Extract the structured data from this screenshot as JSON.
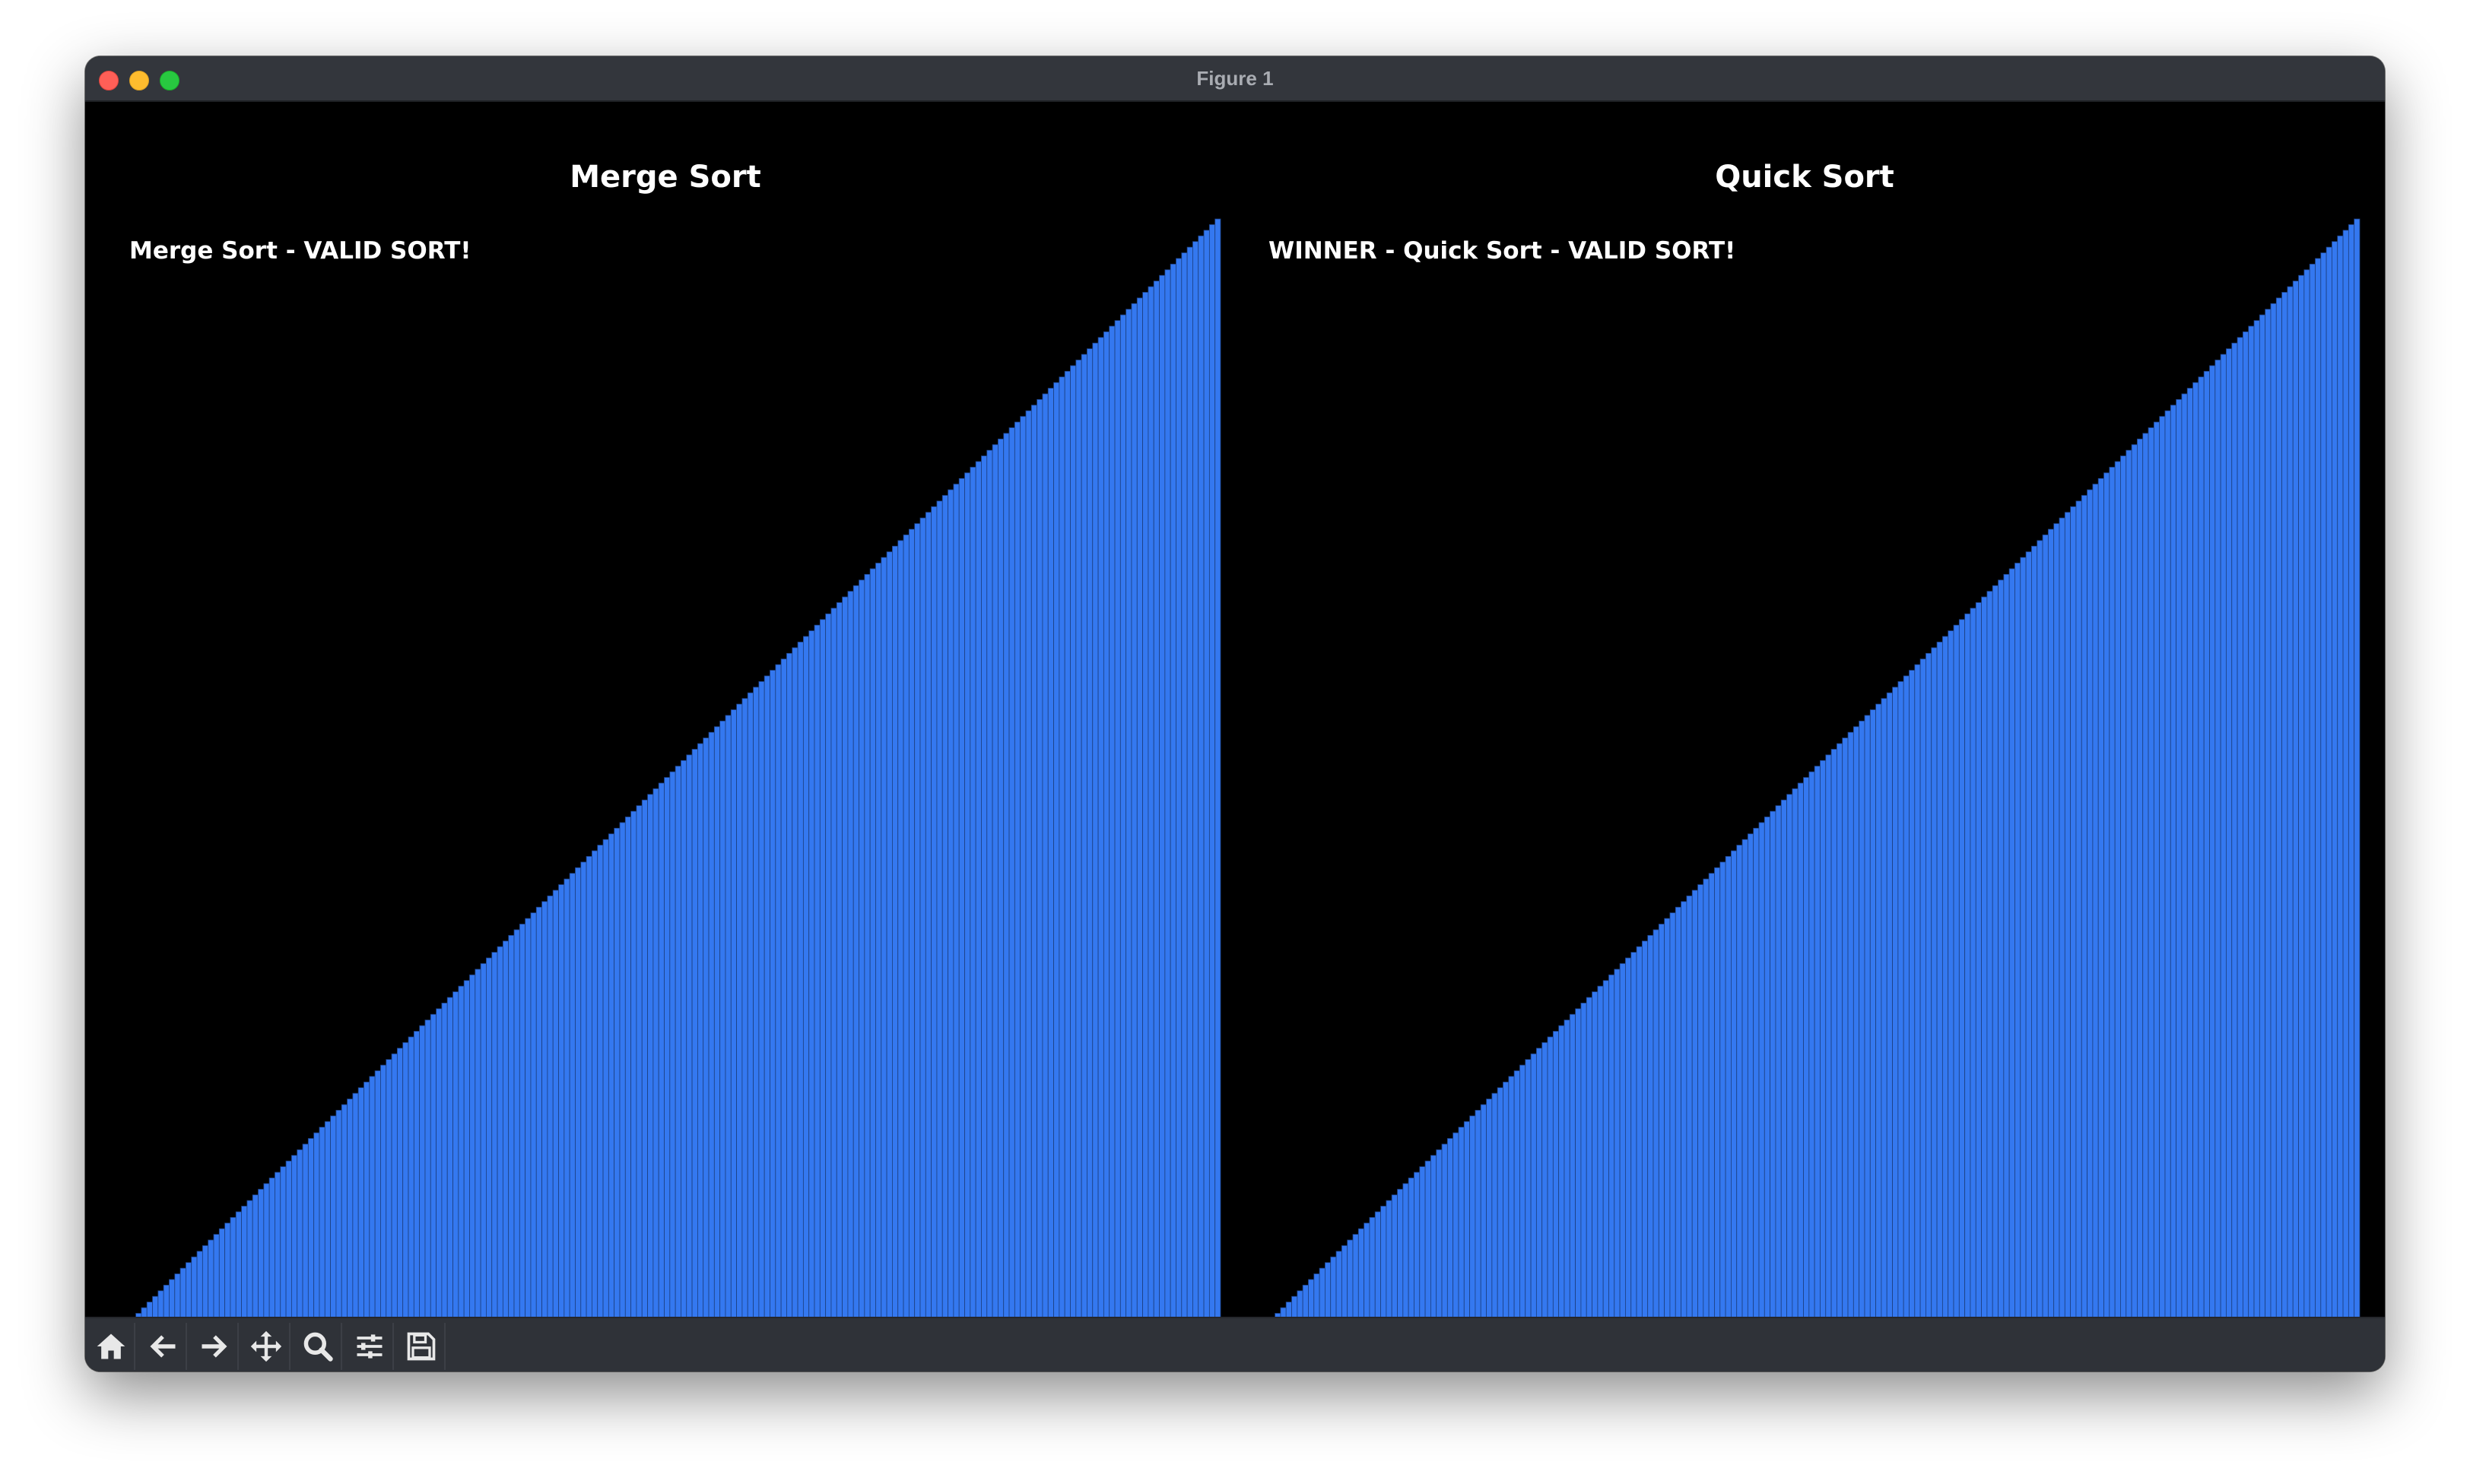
{
  "window": {
    "title": "Figure 1"
  },
  "toolbar": {
    "buttons": [
      {
        "icon": "home-icon",
        "label": "Home"
      },
      {
        "icon": "back-arrow-icon",
        "label": "Back"
      },
      {
        "icon": "forward-arrow-icon",
        "label": "Forward"
      },
      {
        "icon": "pan-move-icon",
        "label": "Pan"
      },
      {
        "icon": "zoom-magnifier-icon",
        "label": "Zoom"
      },
      {
        "icon": "configure-subplots-icon",
        "label": "Subplots"
      },
      {
        "icon": "save-floppy-icon",
        "label": "Save"
      }
    ]
  },
  "colors": {
    "background": "#000000",
    "bar_fill": "#3478f0",
    "bar_edge": "#1c3f80",
    "text": "#ffffff"
  },
  "chart_data": [
    {
      "type": "bar",
      "title": "Merge Sort",
      "annotation": "Merge Sort - VALID SORT!",
      "xlabel": "",
      "ylabel": "",
      "grid": false,
      "axes_visible": false,
      "sorted": true,
      "x_range": [
        1,
        200
      ],
      "y_range": [
        1,
        200
      ],
      "values_rule": "ascending integers 1..200 (value = index)"
    },
    {
      "type": "bar",
      "title": "Quick Sort",
      "annotation": "WINNER - Quick Sort - VALID SORT!",
      "xlabel": "",
      "ylabel": "",
      "grid": false,
      "axes_visible": false,
      "sorted": true,
      "x_range": [
        1,
        200
      ],
      "y_range": [
        1,
        200
      ],
      "values_rule": "ascending integers 1..200 (value = index)"
    }
  ]
}
